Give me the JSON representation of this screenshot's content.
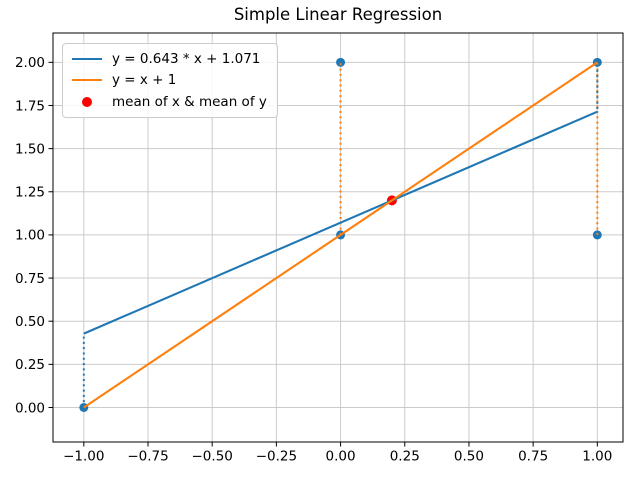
{
  "chart_data": {
    "type": "scatter+line",
    "title": "Simple Linear Regression",
    "xlabel": "",
    "ylabel": "",
    "xlim": [
      -1.12,
      1.1
    ],
    "ylim": [
      -0.2,
      2.17
    ],
    "grid": true,
    "grid_color": "#cbcbcb",
    "spine_color": "#000000",
    "xticks": {
      "values": [
        -1,
        -0.75,
        -0.5,
        -0.25,
        0,
        0.25,
        0.5,
        0.75,
        1
      ],
      "labels": [
        "−1.00",
        "−0.75",
        "−0.50",
        "−0.25",
        "0.00",
        "0.25",
        "0.50",
        "0.75",
        "1.00"
      ]
    },
    "yticks": {
      "values": [
        0,
        0.25,
        0.5,
        0.75,
        1,
        1.25,
        1.5,
        1.75,
        2
      ],
      "labels": [
        "0.00",
        "0.25",
        "0.50",
        "0.75",
        "1.00",
        "1.25",
        "1.50",
        "1.75",
        "2.00"
      ]
    },
    "points": {
      "color": "#1f77b4",
      "xy": [
        [
          -1,
          0
        ],
        [
          0,
          1
        ],
        [
          0,
          2
        ],
        [
          1,
          1
        ],
        [
          1,
          2
        ]
      ]
    },
    "mean_point": {
      "x": 0.2,
      "y": 1.2,
      "color": "#ff0000",
      "label": "mean of x & mean of y"
    },
    "lines": [
      {
        "name": "regression-line",
        "label": "y = 0.643 * x + 1.071",
        "color": "#1f77b4",
        "slope": 0.643,
        "intercept": 1.071,
        "x_range": [
          -1,
          1
        ]
      },
      {
        "name": "identity-line",
        "label": "y = x + 1",
        "color": "#ff7f0e",
        "slope": 1,
        "intercept": 1,
        "x_range": [
          -1,
          1
        ]
      }
    ],
    "residuals": [
      {
        "x": -1,
        "y1": 0,
        "y2": 0.428,
        "color": "#1f77b4",
        "offset": 0
      },
      {
        "x": 0,
        "y1": 1,
        "y2": 2,
        "color": "#ff7f0e",
        "offset": 0
      },
      {
        "x": 1,
        "y1": 1,
        "y2": 2,
        "color": "#ff7f0e",
        "offset": 0
      },
      {
        "x": 1,
        "y1": 1.714,
        "y2": 2,
        "color": "#1f77b4",
        "offset": 2.6
      }
    ],
    "legend": {
      "position": "upper-left",
      "entries": [
        {
          "type": "line",
          "color": "#1f77b4",
          "label": "y = 0.643 * x + 1.071"
        },
        {
          "type": "line",
          "color": "#ff7f0e",
          "label": "y = x + 1"
        },
        {
          "type": "dot",
          "color": "#ff0000",
          "label": "mean of x & mean of y"
        }
      ]
    }
  }
}
